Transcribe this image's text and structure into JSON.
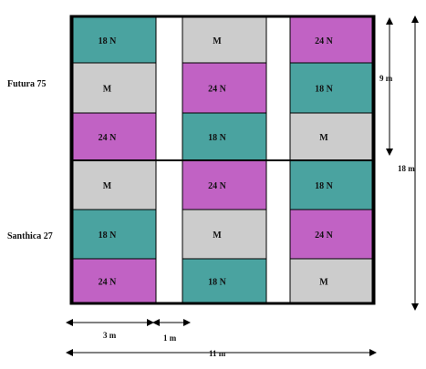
{
  "colors": {
    "18N": "#4aa3a0",
    "24N": "#c162c4",
    "M": "#cccccc",
    "frame": "#000000",
    "gap": "#ffffff"
  },
  "varieties": {
    "top": "Futura  75",
    "bottom": "Santhica 27"
  },
  "columns": [
    {
      "plots": [
        "18 N",
        "M",
        "24 N",
        "M",
        "18 N",
        "24 N"
      ]
    },
    {
      "plots": [
        "M",
        "24 N",
        "18 N",
        "24 N",
        "M",
        "18 N"
      ]
    },
    {
      "plots": [
        "24 N",
        "18 N",
        "M",
        "18 N",
        "24 N",
        "M"
      ]
    }
  ],
  "dimensions": {
    "plot_width": "3 m",
    "gap_width": "1 m",
    "total_width": "11 m",
    "half_height": "9 m",
    "total_height": "18 m"
  }
}
